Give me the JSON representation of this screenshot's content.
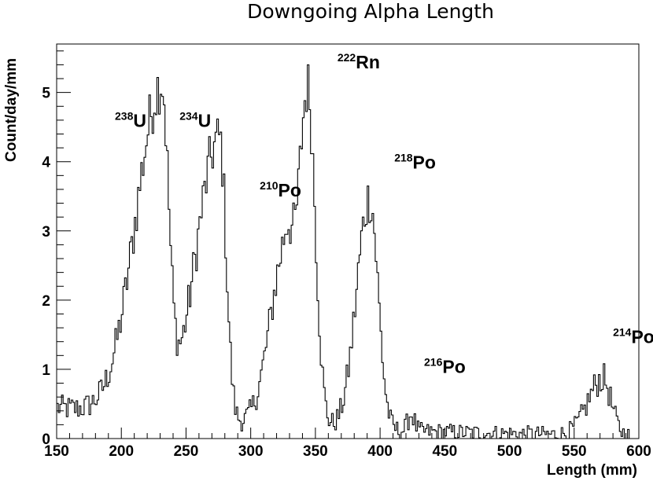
{
  "chart_data": {
    "type": "histogram",
    "title": "Downgoing Alpha Length",
    "xlabel": "Length (mm)",
    "ylabel": "Count/day/mm",
    "xlim": [
      150,
      600
    ],
    "ylim": [
      0,
      5.7
    ],
    "x_ticks": [
      150,
      200,
      250,
      300,
      350,
      400,
      450,
      500,
      550,
      600
    ],
    "y_ticks": [
      0,
      1,
      2,
      3,
      4,
      5
    ],
    "grid": false,
    "bin_width": 1.25,
    "peaks": [
      {
        "id": "u238",
        "mass": "238",
        "element": "U",
        "center": 231,
        "amplitude": 4.7,
        "sigma_left": 20,
        "sigma_right": 5.5
      },
      {
        "id": "u234",
        "mass": "234",
        "element": "U",
        "center": 276,
        "amplitude": 4.1,
        "sigma_left": 18,
        "sigma_right": 5.0
      },
      {
        "id": "po210",
        "mass": "210",
        "element": "Po",
        "center": 327,
        "amplitude": 2.5,
        "sigma_left": 12,
        "sigma_right": 5.0
      },
      {
        "id": "rn222",
        "mass": "222",
        "element": "Rn",
        "center": 344,
        "amplitude": 4.9,
        "sigma_left": 7.5,
        "sigma_right": 6.0
      },
      {
        "id": "po218",
        "mass": "218",
        "element": "Po",
        "center": 392,
        "amplitude": 3.35,
        "sigma_left": 10,
        "sigma_right": 6.5
      },
      {
        "id": "po216",
        "mass": "216",
        "element": "Po",
        "center": 424,
        "amplitude": 0.25,
        "sigma_left": 2.5,
        "sigma_right": 2.5
      },
      {
        "id": "po214",
        "mass": "214",
        "element": "Po",
        "center": 572,
        "amplitude": 0.82,
        "sigma_left": 11,
        "sigma_right": 6.5
      }
    ],
    "background": {
      "start_value": 0.45,
      "decay_length": 190,
      "floor": 0.03
    },
    "peak_labels": [
      {
        "id": "u238",
        "mass": "238",
        "element": "U",
        "x": 195,
        "y": 4.5
      },
      {
        "id": "u234",
        "mass": "234",
        "element": "U",
        "x": 245,
        "y": 4.5
      },
      {
        "id": "po210",
        "mass": "210",
        "element": "Po",
        "x": 307,
        "y": 3.5
      },
      {
        "id": "rn222",
        "mass": "222",
        "element": "Rn",
        "x": 367,
        "y": 5.35
      },
      {
        "id": "po218",
        "mass": "218",
        "element": "Po",
        "x": 411,
        "y": 3.9
      },
      {
        "id": "po216",
        "mass": "216",
        "element": "Po",
        "x": 434,
        "y": 0.95
      },
      {
        "id": "po214",
        "mass": "214",
        "element": "Po",
        "x": 580,
        "y": 1.38
      }
    ]
  }
}
